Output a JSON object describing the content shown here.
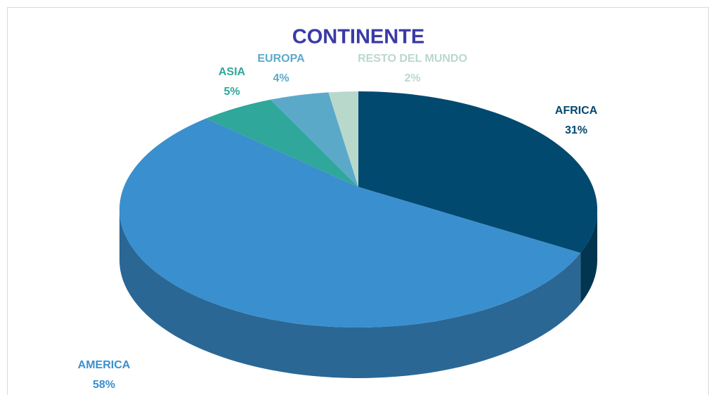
{
  "chart_data": {
    "type": "pie",
    "title": "CONTINENTE",
    "categories": [
      "AFRICA",
      "AMERICA",
      "ASIA",
      "EUROPA",
      "RESTO DEL MUNDO"
    ],
    "values": [
      31,
      58,
      5,
      4,
      2
    ],
    "value_labels": [
      "31%",
      "58%",
      "5%",
      "4%",
      "2%"
    ],
    "colors": [
      "#02496f",
      "#3a8fcf",
      "#2fa79a",
      "#5ba9c9",
      "#b9d8cc"
    ]
  }
}
